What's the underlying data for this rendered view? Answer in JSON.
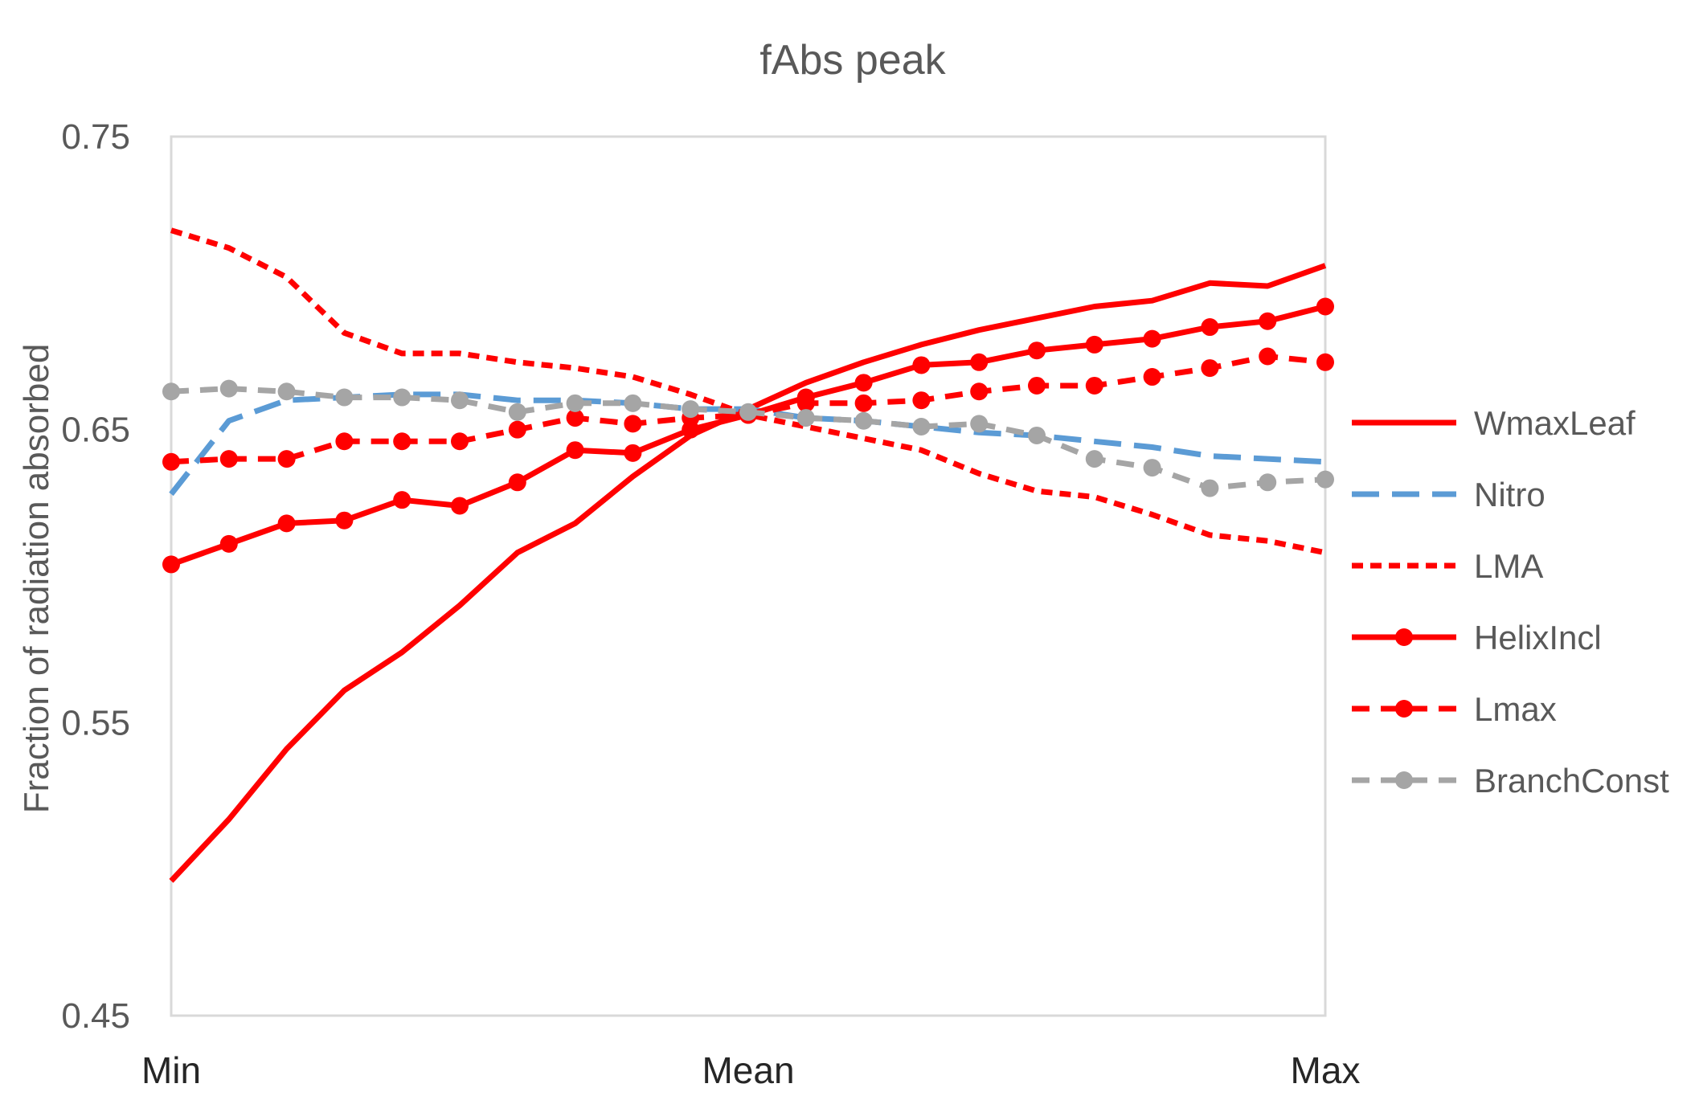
{
  "chart_data": {
    "type": "line",
    "title": "fAbs peak",
    "xlabel": "",
    "ylabel": "Fraction of radiation absorbed",
    "ylim": [
      0.45,
      0.75
    ],
    "yticks": [
      "0.45",
      "0.55",
      "0.65",
      "0.75"
    ],
    "x_points": 21,
    "x_tick_labels": [
      {
        "index": 0,
        "label": "Min"
      },
      {
        "index": 10,
        "label": "Mean"
      },
      {
        "index": 20,
        "label": "Max"
      }
    ],
    "grid": false,
    "legend_position": "right",
    "series": [
      {
        "name": "WmaxLeaf",
        "color": "#FF0000",
        "dash": "solid",
        "markers": false,
        "values": [
          0.496,
          0.517,
          0.541,
          0.561,
          0.574,
          0.59,
          0.608,
          0.618,
          0.634,
          0.648,
          0.657,
          0.666,
          0.673,
          0.679,
          0.684,
          0.688,
          0.692,
          0.694,
          0.7,
          0.699,
          0.706
        ]
      },
      {
        "name": "Nitro",
        "color": "#5B9BD5",
        "dash": "long-dash",
        "markers": false,
        "values": [
          0.628,
          0.653,
          0.66,
          0.661,
          0.662,
          0.662,
          0.66,
          0.66,
          0.659,
          0.657,
          0.657,
          0.654,
          0.653,
          0.651,
          0.649,
          0.648,
          0.646,
          0.644,
          0.641,
          0.64,
          0.639
        ]
      },
      {
        "name": "LMA",
        "color": "#FF0000",
        "dash": "short-dash",
        "markers": false,
        "values": [
          0.718,
          0.712,
          0.702,
          0.683,
          0.676,
          0.676,
          0.673,
          0.671,
          0.668,
          0.662,
          0.655,
          0.651,
          0.647,
          0.643,
          0.635,
          0.629,
          0.627,
          0.621,
          0.614,
          0.612,
          0.608
        ]
      },
      {
        "name": "HelixIncl",
        "color": "#FF0000",
        "dash": "solid",
        "markers": true,
        "values": [
          0.604,
          0.611,
          0.618,
          0.619,
          0.626,
          0.624,
          0.632,
          0.643,
          0.642,
          0.65,
          0.655,
          0.661,
          0.666,
          0.672,
          0.673,
          0.677,
          0.679,
          0.681,
          0.685,
          0.687,
          0.692
        ]
      },
      {
        "name": "Lmax",
        "color": "#FF0000",
        "dash": "dash",
        "markers": true,
        "values": [
          0.639,
          0.64,
          0.64,
          0.646,
          0.646,
          0.646,
          0.65,
          0.654,
          0.652,
          0.654,
          0.655,
          0.659,
          0.659,
          0.66,
          0.663,
          0.665,
          0.665,
          0.668,
          0.671,
          0.675,
          0.673
        ]
      },
      {
        "name": "BranchConst",
        "color": "#A5A5A5",
        "dash": "dash",
        "markers": true,
        "values": [
          0.663,
          0.664,
          0.663,
          0.661,
          0.661,
          0.66,
          0.656,
          0.659,
          0.659,
          0.657,
          0.656,
          0.654,
          0.653,
          0.651,
          0.652,
          0.648,
          0.64,
          0.637,
          0.63,
          0.632,
          0.633
        ]
      }
    ]
  }
}
